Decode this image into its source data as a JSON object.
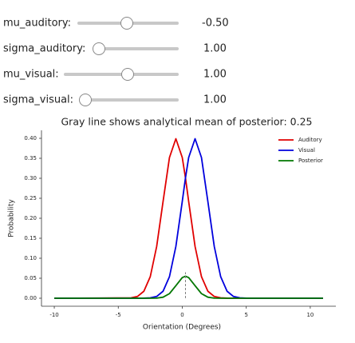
{
  "sliders": [
    {
      "label": "mu_auditory:",
      "value": "-0.50"
    },
    {
      "label": "sigma_auditory:",
      "value": "1.00"
    },
    {
      "label": "mu_visual:",
      "value": "1.00"
    },
    {
      "label": "sigma_visual:",
      "value": "1.00"
    }
  ],
  "chart_data": {
    "type": "line",
    "title": "Gray line shows analytical mean of posterior: 0.25",
    "x_label": "Orientation (Degrees)",
    "y_label": "Probability",
    "x": [
      -10,
      -4,
      -3.5,
      -3,
      -2.5,
      -2,
      -1.5,
      -1,
      -0.5,
      0,
      0.25,
      0.5,
      1,
      1.5,
      2,
      2.5,
      3,
      3.5,
      4,
      4.5,
      5,
      11
    ],
    "series": [
      {
        "name": "Auditory",
        "color": "#e00000",
        "values": [
          0,
          0.0009,
          0.0044,
          0.0175,
          0.054,
          0.1295,
          0.242,
          0.352,
          0.399,
          0.352,
          0.301,
          0.242,
          0.1295,
          0.054,
          0.0175,
          0.0044,
          0.0009,
          0.0001,
          0,
          0,
          0,
          0
        ]
      },
      {
        "name": "Visual",
        "color": "#0000dd",
        "values": [
          0,
          0,
          0,
          0.0001,
          0.0009,
          0.0044,
          0.0175,
          0.054,
          0.1295,
          0.242,
          0.301,
          0.352,
          0.399,
          0.352,
          0.242,
          0.1295,
          0.054,
          0.0175,
          0.0044,
          0.0009,
          0.0001,
          0
        ]
      },
      {
        "name": "Posterior",
        "color": "#007700",
        "values": [
          0,
          0,
          0,
          0,
          0,
          0.0003,
          0.0026,
          0.0115,
          0.0313,
          0.0517,
          0.055,
          0.0517,
          0.0313,
          0.0115,
          0.0026,
          0.0003,
          0,
          0,
          0,
          0,
          0,
          0
        ]
      }
    ],
    "vline": {
      "x": 0.25,
      "ylim": [
        0,
        0.065
      ],
      "color": "#808080"
    },
    "xlim": [
      -11,
      12
    ],
    "ylim": [
      -0.02,
      0.42
    ],
    "xticks": [
      -10,
      -5,
      0,
      5,
      10
    ],
    "yticks": [
      {
        "value": 0,
        "label": "0.00"
      },
      {
        "value": 0.05,
        "label": "0.05"
      },
      {
        "value": 0.1,
        "label": "0.10"
      },
      {
        "value": 0.15,
        "label": "0.15"
      },
      {
        "value": 0.2,
        "label": "0.20"
      },
      {
        "value": 0.25,
        "label": "0.25"
      },
      {
        "value": 0.3,
        "label": "0.30"
      },
      {
        "value": 0.35,
        "label": "0.35"
      },
      {
        "value": 0.4,
        "label": "0.40"
      }
    ],
    "legend": "upper right"
  }
}
